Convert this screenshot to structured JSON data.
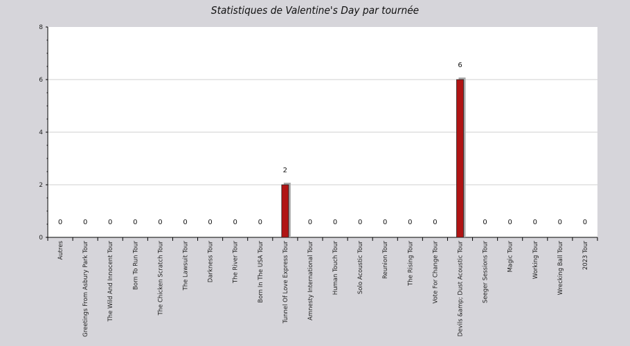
{
  "chart_data": {
    "type": "bar",
    "title": "Statistiques de Valentine's Day par tournée",
    "xlabel": "",
    "ylabel": "",
    "ylim": [
      0,
      8
    ],
    "yticks": [
      0,
      2,
      4,
      6,
      8
    ],
    "grid": true,
    "categories": [
      "Autres",
      "Greetings From Asbury Park Tour",
      "The Wild And Innocent Tour",
      "Born To Run Tour",
      "The Chicken Scratch Tour",
      "The Lawsuit Tour",
      "Darkness Tour",
      "The River Tour",
      "Born In The USA Tour",
      "Tunnel Of Love Express Tour",
      "Amnesty International Tour",
      "Human Touch Tour",
      "Solo Acoustic Tour",
      "Reunion Tour",
      "The Rising Tour",
      "Vote For Change Tour",
      "Devils &amp; Dust Acoustic Tour",
      "Seeger Sessions Tour",
      "Magic Tour",
      "Working Tour",
      "Wrecking Ball Tour",
      "2023 Tour"
    ],
    "values": [
      0,
      0,
      0,
      0,
      0,
      0,
      0,
      0,
      0,
      2,
      0,
      0,
      0,
      0,
      0,
      0,
      6,
      0,
      0,
      0,
      0,
      0
    ],
    "colors": {
      "bar": "#b01414",
      "shadow": "#a9a9a9",
      "plot_bg": "#ffffff",
      "page_bg": "#d6d5da",
      "grid": "#cfcfcf"
    }
  }
}
